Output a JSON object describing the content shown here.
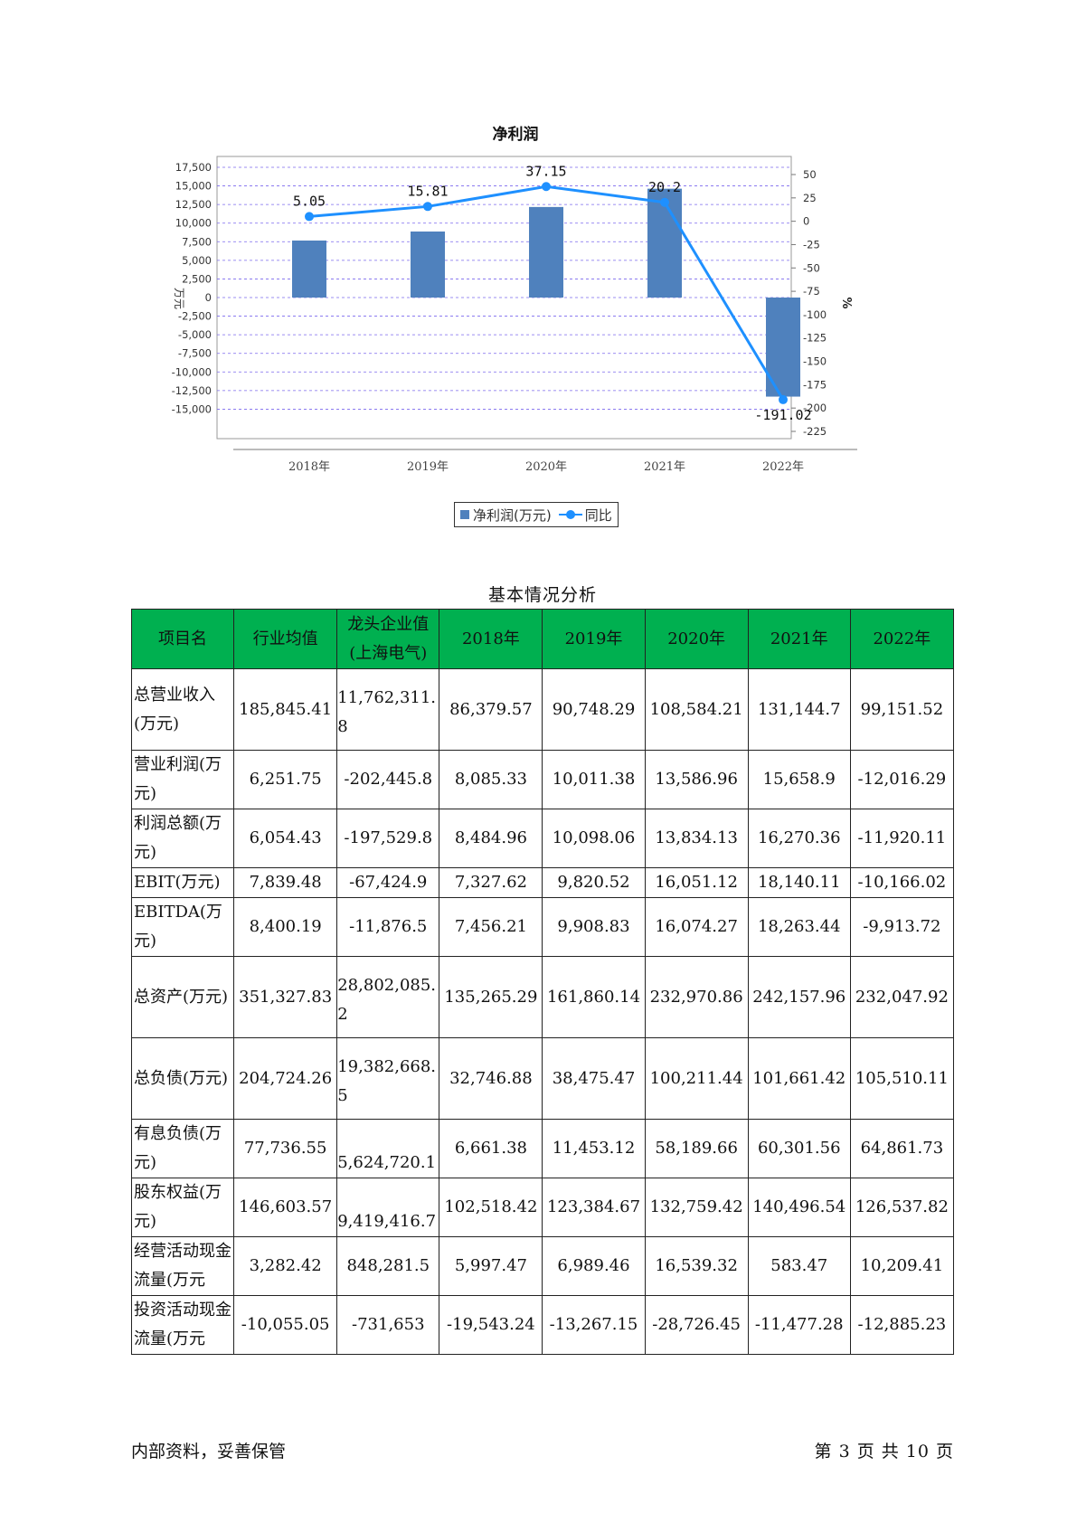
{
  "chart_data": {
    "type": "bar",
    "title": "净利润",
    "categories": [
      "2018年",
      "2019年",
      "2020年",
      "2021年",
      "2022年"
    ],
    "series": [
      {
        "name": "净利润(万元)",
        "type": "bar",
        "axis": "left",
        "color": "#4f81bd",
        "values": [
          7661,
          8872,
          12168,
          14627,
          -13313
        ]
      },
      {
        "name": "同比",
        "type": "line",
        "axis": "right",
        "color": "#1e90ff",
        "values": [
          5.05,
          15.81,
          37.15,
          20.2,
          -191.02
        ],
        "labels": [
          "5.05",
          "15.81",
          "37.15",
          "20.2",
          "-191.02"
        ]
      }
    ],
    "ylabel": "万元",
    "y2label": "%",
    "ylim": [
      -17500,
      17500
    ],
    "y2lim": [
      -225,
      50
    ],
    "yticks": [
      17500,
      15000,
      12500,
      10000,
      7500,
      5000,
      2500,
      0,
      -2500,
      -5000,
      -7500,
      -10000,
      -12500,
      -15000
    ],
    "ytick_labels": [
      "17,500",
      "15,000",
      "12,500",
      "10,000",
      "7,500",
      "5,000",
      "2,500",
      "0",
      "-2,500",
      "-5,000",
      "-7,500",
      "-10,000",
      "-12,500",
      "-15,000"
    ],
    "y2ticks": [
      50,
      25,
      0,
      -25,
      -50,
      -75,
      -100,
      -125,
      -150,
      -175,
      -200,
      -225
    ],
    "grid": true,
    "legend": "bottom"
  },
  "table": {
    "title": "基本情况分析",
    "headers": [
      "项目名",
      "行业均值",
      "龙头企业值(上海电气)",
      "2018年",
      "2019年",
      "2020年",
      "2021年",
      "2022年"
    ],
    "rows": [
      [
        "总营业收入(万元)",
        "185,845.41",
        "11,762,311.8",
        "86,379.57",
        "90,748.29",
        "108,584.21",
        "131,144.7",
        "99,151.52"
      ],
      [
        "营业利润(万元)",
        "6,251.75",
        "-202,445.8",
        "8,085.33",
        "10,011.38",
        "13,586.96",
        "15,658.9",
        "-12,016.29"
      ],
      [
        "利润总额(万元)",
        "6,054.43",
        "-197,529.8",
        "8,484.96",
        "10,098.06",
        "13,834.13",
        "16,270.36",
        "-11,920.11"
      ],
      [
        "EBIT(万元)",
        "7,839.48",
        "-67,424.9",
        "7,327.62",
        "9,820.52",
        "16,051.12",
        "18,140.11",
        "-10,166.02"
      ],
      [
        "EBITDA(万元)",
        "8,400.19",
        "-11,876.5",
        "7,456.21",
        "9,908.83",
        "16,074.27",
        "18,263.44",
        "-9,913.72"
      ],
      [
        "总资产(万元)",
        "351,327.83",
        "28,802,085.2",
        "135,265.29",
        "161,860.14",
        "232,970.86",
        "242,157.96",
        "232,047.92"
      ],
      [
        "总负债(万元)",
        "204,724.26",
        "19,382,668.5",
        "32,746.88",
        "38,475.47",
        "100,211.44",
        "101,661.42",
        "105,510.11"
      ],
      [
        "有息负债(万元)",
        "77,736.55",
        "5,624,720.1",
        "6,661.38",
        "11,453.12",
        "58,189.66",
        "60,301.56",
        "64,861.73"
      ],
      [
        "股东权益(万元)",
        "146,603.57",
        "9,419,416.7",
        "102,518.42",
        "123,384.67",
        "132,759.42",
        "140,496.54",
        "126,537.82"
      ],
      [
        "经营活动现金流量(万元",
        "3,282.42",
        "848,281.5",
        "5,997.47",
        "6,989.46",
        "16,539.32",
        "583.47",
        "10,209.41"
      ],
      [
        "投资活动现金流量(万元",
        "-10,055.05",
        "-731,653",
        "-19,543.24",
        "-13,267.15",
        "-28,726.45",
        "-11,477.28",
        "-12,885.23"
      ]
    ]
  },
  "footer": {
    "left": "内部资料，妥善保管",
    "right": "第 3 页  共 10 页"
  }
}
